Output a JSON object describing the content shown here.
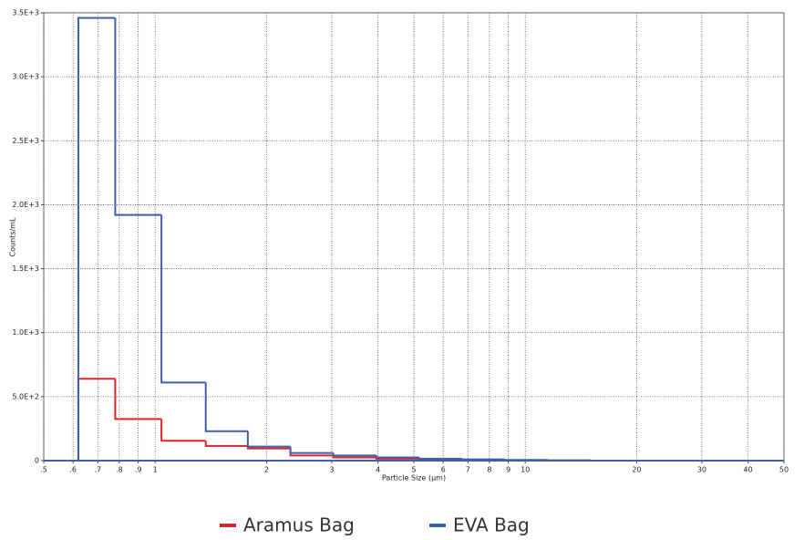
{
  "chart_data": {
    "type": "histogram-step",
    "x_label": "Particle Size (µm)",
    "y_label": "Counts/mL",
    "xscale": "log",
    "grid": true,
    "legend": "bottom",
    "bins": [
      0.62,
      0.78,
      1.04,
      1.37,
      1.78,
      2.32,
      3.03,
      3.96,
      5.17,
      6.75,
      8.8,
      11.5,
      15
    ],
    "series": [
      {
        "name": "Aramus Bag",
        "color": "#d9262c",
        "values": [
          640,
          325,
          155,
          115,
          95,
          40,
          25,
          15,
          10,
          5,
          3,
          2
        ]
      },
      {
        "name": "EVA Bag",
        "color": "#3f5fa8",
        "values": [
          3460,
          1920,
          610,
          230,
          110,
          60,
          40,
          25,
          15,
          10,
          5,
          2
        ]
      }
    ],
    "xlim": [
      0.5,
      50
    ],
    "xticks": [
      {
        "value": 0.5,
        "label": ".5"
      },
      {
        "value": 0.6,
        "label": ".6"
      },
      {
        "value": 0.7,
        "label": ".7"
      },
      {
        "value": 0.8,
        "label": ".8"
      },
      {
        "value": 0.9,
        "label": ".9"
      },
      1,
      2,
      3,
      4,
      5,
      6,
      7,
      8,
      9,
      10,
      20,
      30,
      40,
      50
    ],
    "ylim": [
      0,
      3500
    ],
    "yticks": [
      0,
      {
        "value": 500,
        "label": "5.0E+2"
      },
      {
        "value": 1000,
        "label": "1.0E+3"
      },
      {
        "value": 1500,
        "label": "1.5E+3"
      },
      {
        "value": 2000,
        "label": "2.0E+3"
      },
      {
        "value": 2500,
        "label": "2.5E+3"
      },
      {
        "value": 3000,
        "label": "3.0E+3"
      },
      {
        "value": 3500,
        "label": "3.5E+3"
      }
    ]
  }
}
